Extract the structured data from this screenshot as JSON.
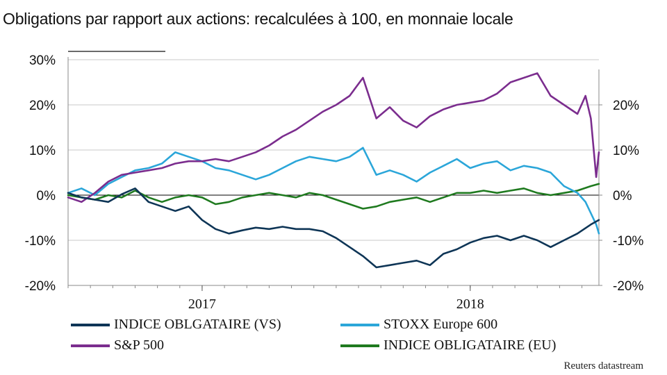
{
  "title": "Obligations par rapport aux actions: recalculées à 100, en monnaie locale",
  "source": "Reuters datastream",
  "chart_data": {
    "type": "line",
    "title": "Obligations par rapport aux actions: recalculées à 100, en monnaie locale",
    "xlabel": "",
    "ylabel": "",
    "x_range": [
      2016.5,
      2018.48
    ],
    "x_ticks": [
      {
        "x": 2017.0,
        "label": "2017"
      },
      {
        "x": 2018.0,
        "label": "2018"
      }
    ],
    "ylim": [
      -20,
      30
    ],
    "y_ticks_left": [
      "30%",
      "20%",
      "10%",
      "0%",
      "-10%",
      "-20%"
    ],
    "y_ticks_left_values": [
      30,
      20,
      10,
      0,
      -10,
      -20
    ],
    "y_ticks_right": [
      "20%",
      "10%",
      "0%",
      "-10%",
      "-20%"
    ],
    "y_ticks_right_values": [
      20,
      10,
      0,
      -10,
      -20
    ],
    "grid": true,
    "legend_position": "bottom",
    "series": [
      {
        "name": "INDICE OBLGATAIRE (VS)",
        "color": "#0e3556",
        "x": [
          2016.5,
          2016.55,
          2016.6,
          2016.65,
          2016.7,
          2016.75,
          2016.8,
          2016.85,
          2016.9,
          2016.95,
          2017.0,
          2017.05,
          2017.1,
          2017.15,
          2017.2,
          2017.25,
          2017.3,
          2017.35,
          2017.4,
          2017.45,
          2017.5,
          2017.55,
          2017.6,
          2017.65,
          2017.7,
          2017.75,
          2017.8,
          2017.85,
          2017.9,
          2017.95,
          2018.0,
          2018.05,
          2018.1,
          2018.15,
          2018.2,
          2018.25,
          2018.3,
          2018.35,
          2018.4,
          2018.45,
          2018.48
        ],
        "values": [
          0.5,
          -0.5,
          -1.0,
          -1.5,
          0.2,
          1.5,
          -1.5,
          -2.5,
          -3.5,
          -2.5,
          -5.5,
          -7.5,
          -8.5,
          -7.8,
          -7.2,
          -7.5,
          -7.0,
          -7.5,
          -7.5,
          -8.0,
          -9.5,
          -11.5,
          -13.5,
          -16.0,
          -15.5,
          -15.0,
          -14.5,
          -15.5,
          -13.0,
          -12.0,
          -10.5,
          -9.5,
          -9.0,
          -10.0,
          -9.0,
          -10.0,
          -11.5,
          -10.0,
          -8.5,
          -6.5,
          -5.5
        ]
      },
      {
        "name": "S&P 500",
        "color": "#7b2d8e",
        "x": [
          2016.5,
          2016.55,
          2016.6,
          2016.65,
          2016.7,
          2016.75,
          2016.8,
          2016.85,
          2016.9,
          2016.95,
          2017.0,
          2017.05,
          2017.1,
          2017.15,
          2017.2,
          2017.25,
          2017.3,
          2017.35,
          2017.4,
          2017.45,
          2017.5,
          2017.55,
          2017.6,
          2017.65,
          2017.7,
          2017.75,
          2017.8,
          2017.85,
          2017.9,
          2017.95,
          2018.0,
          2018.05,
          2018.1,
          2018.15,
          2018.2,
          2018.25,
          2018.3,
          2018.35,
          2018.4,
          2018.43,
          2018.45,
          2018.47,
          2018.48
        ],
        "values": [
          -0.5,
          -1.5,
          0.5,
          3.0,
          4.5,
          5.0,
          5.5,
          6.0,
          7.0,
          7.5,
          7.5,
          8.0,
          7.5,
          8.5,
          9.5,
          11.0,
          13.0,
          14.5,
          16.5,
          18.5,
          20.0,
          22.0,
          26.0,
          17.0,
          19.5,
          16.5,
          15.0,
          17.5,
          19.0,
          20.0,
          20.5,
          21.0,
          22.5,
          25.0,
          26.0,
          27.0,
          22.0,
          20.0,
          18.0,
          22.0,
          17.0,
          4.0,
          9.5
        ]
      },
      {
        "name": "STOXX Europe 600",
        "color": "#2ba6d9",
        "x": [
          2016.5,
          2016.55,
          2016.6,
          2016.65,
          2016.7,
          2016.75,
          2016.8,
          2016.85,
          2016.9,
          2016.95,
          2017.0,
          2017.05,
          2017.1,
          2017.15,
          2017.2,
          2017.25,
          2017.3,
          2017.35,
          2017.4,
          2017.45,
          2017.5,
          2017.55,
          2017.6,
          2017.65,
          2017.7,
          2017.75,
          2017.8,
          2017.85,
          2017.9,
          2017.95,
          2018.0,
          2018.05,
          2018.1,
          2018.15,
          2018.2,
          2018.25,
          2018.3,
          2018.35,
          2018.4,
          2018.43,
          2018.45,
          2018.47,
          2018.48
        ],
        "values": [
          0.5,
          1.5,
          0.0,
          2.5,
          4.0,
          5.5,
          6.0,
          7.0,
          9.5,
          8.5,
          7.5,
          6.0,
          5.5,
          4.5,
          3.5,
          4.5,
          6.0,
          7.5,
          8.5,
          8.0,
          7.5,
          8.5,
          10.5,
          4.5,
          5.5,
          4.5,
          3.0,
          5.0,
          6.5,
          8.0,
          6.0,
          7.0,
          7.5,
          5.5,
          6.5,
          6.0,
          5.0,
          2.0,
          0.5,
          -1.5,
          -4.0,
          -6.5,
          -8.5
        ]
      },
      {
        "name": "INDICE OBLIGATAIRE (EU)",
        "color": "#1f7a1f",
        "x": [
          2016.5,
          2016.55,
          2016.6,
          2016.65,
          2016.7,
          2016.75,
          2016.8,
          2016.85,
          2016.9,
          2016.95,
          2017.0,
          2017.05,
          2017.1,
          2017.15,
          2017.2,
          2017.25,
          2017.3,
          2017.35,
          2017.4,
          2017.45,
          2017.5,
          2017.55,
          2017.6,
          2017.65,
          2017.7,
          2017.75,
          2017.8,
          2017.85,
          2017.9,
          2017.95,
          2018.0,
          2018.05,
          2018.1,
          2018.15,
          2018.2,
          2018.25,
          2018.3,
          2018.35,
          2018.4,
          2018.45,
          2018.48
        ],
        "values": [
          0.0,
          -0.5,
          -1.0,
          0.0,
          -0.5,
          1.0,
          -0.5,
          -1.5,
          -0.5,
          0.0,
          -0.5,
          -2.0,
          -1.5,
          -0.5,
          0.0,
          0.5,
          0.0,
          -0.5,
          0.5,
          0.0,
          -1.0,
          -2.0,
          -3.0,
          -2.5,
          -1.5,
          -1.0,
          -0.5,
          -1.5,
          -0.5,
          0.5,
          0.5,
          1.0,
          0.5,
          1.0,
          1.5,
          0.5,
          0.0,
          0.5,
          1.0,
          2.0,
          2.5
        ]
      }
    ]
  },
  "legend": [
    {
      "label": "INDICE OBLGATAIRE (VS)",
      "color": "#0e3556"
    },
    {
      "label": "STOXX Europe 600",
      "color": "#2ba6d9"
    },
    {
      "label": "S&P 500",
      "color": "#7b2d8e"
    },
    {
      "label": "INDICE OBLIGATAIRE (EU)",
      "color": "#1f7a1f"
    }
  ]
}
